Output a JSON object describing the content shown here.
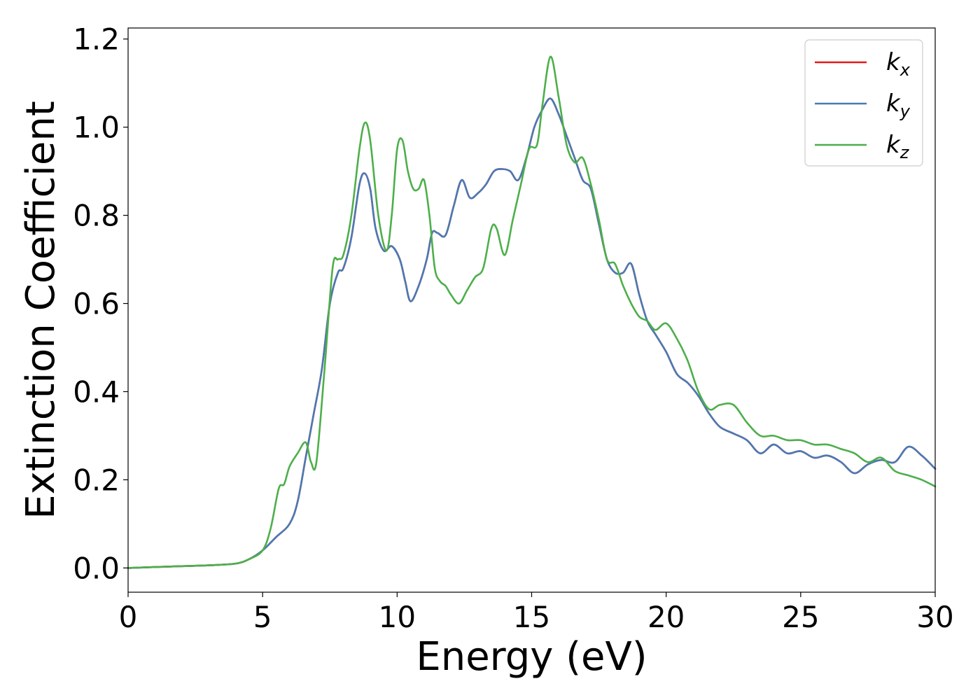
{
  "chart_data": {
    "type": "line",
    "xlabel": "Energy (eV)",
    "ylabel": "Extinction Coefficient",
    "xlim": [
      0,
      30
    ],
    "ylim": [
      -0.055,
      1.225
    ],
    "xticks": [
      0,
      5,
      10,
      15,
      20,
      25,
      30
    ],
    "yticks": [
      0.0,
      0.2,
      0.4,
      0.6,
      0.8,
      1.0,
      1.2
    ],
    "xtick_labels": [
      "0",
      "5",
      "10",
      "15",
      "20",
      "25",
      "30"
    ],
    "ytick_labels": [
      "0.0",
      "0.2",
      "0.4",
      "0.6",
      "0.8",
      "1.0",
      "1.2"
    ],
    "grid": false,
    "legend_position": "top-right",
    "series": [
      {
        "name": "k_x",
        "label_base": "k",
        "label_sub": "x",
        "color": "#e41a1c",
        "hidden_behind": "k_y",
        "x": [
          0,
          1,
          2,
          3,
          4,
          4.5,
          5,
          5.5,
          6,
          6.3,
          6.6,
          6.9,
          7.2,
          7.5,
          7.8,
          8.0,
          8.3,
          8.6,
          8.8,
          9.0,
          9.2,
          9.5,
          9.8,
          10.1,
          10.3,
          10.5,
          10.8,
          11.1,
          11.3,
          11.5,
          11.8,
          12.1,
          12.4,
          12.7,
          13.0,
          13.3,
          13.6,
          13.9,
          14.2,
          14.5,
          14.8,
          15.1,
          15.4,
          15.7,
          16.0,
          16.3,
          16.6,
          16.9,
          17.2,
          17.5,
          17.8,
          18.1,
          18.4,
          18.7,
          19.0,
          19.3,
          19.6,
          20.0,
          20.4,
          20.8,
          21.2,
          21.6,
          22.0,
          22.5,
          23.0,
          23.5,
          24.0,
          24.5,
          25.0,
          25.5,
          26.0,
          26.5,
          27.0,
          27.5,
          28.0,
          28.5,
          29.0,
          29.5,
          30.0
        ],
        "y": [
          0.0,
          0.002,
          0.004,
          0.006,
          0.01,
          0.02,
          0.04,
          0.07,
          0.1,
          0.15,
          0.25,
          0.35,
          0.45,
          0.6,
          0.67,
          0.68,
          0.75,
          0.87,
          0.895,
          0.86,
          0.77,
          0.72,
          0.73,
          0.7,
          0.65,
          0.605,
          0.64,
          0.7,
          0.76,
          0.76,
          0.755,
          0.82,
          0.88,
          0.84,
          0.85,
          0.87,
          0.9,
          0.905,
          0.9,
          0.88,
          0.93,
          1.0,
          1.04,
          1.065,
          1.03,
          0.98,
          0.93,
          0.88,
          0.86,
          0.78,
          0.7,
          0.67,
          0.67,
          0.69,
          0.62,
          0.56,
          0.53,
          0.49,
          0.44,
          0.42,
          0.39,
          0.35,
          0.32,
          0.305,
          0.29,
          0.26,
          0.28,
          0.26,
          0.265,
          0.25,
          0.255,
          0.24,
          0.215,
          0.235,
          0.245,
          0.24,
          0.275,
          0.255,
          0.225
        ]
      },
      {
        "name": "k_y",
        "label_base": "k",
        "label_sub": "y",
        "color": "#4a7ab3",
        "x": [
          0,
          1,
          2,
          3,
          4,
          4.5,
          5,
          5.5,
          6,
          6.3,
          6.6,
          6.9,
          7.2,
          7.5,
          7.8,
          8.0,
          8.3,
          8.6,
          8.8,
          9.0,
          9.2,
          9.5,
          9.8,
          10.1,
          10.3,
          10.5,
          10.8,
          11.1,
          11.3,
          11.5,
          11.8,
          12.1,
          12.4,
          12.7,
          13.0,
          13.3,
          13.6,
          13.9,
          14.2,
          14.5,
          14.8,
          15.1,
          15.4,
          15.7,
          16.0,
          16.3,
          16.6,
          16.9,
          17.2,
          17.5,
          17.8,
          18.1,
          18.4,
          18.7,
          19.0,
          19.3,
          19.6,
          20.0,
          20.4,
          20.8,
          21.2,
          21.6,
          22.0,
          22.5,
          23.0,
          23.5,
          24.0,
          24.5,
          25.0,
          25.5,
          26.0,
          26.5,
          27.0,
          27.5,
          28.0,
          28.5,
          29.0,
          29.5,
          30.0
        ],
        "y": [
          0.0,
          0.002,
          0.004,
          0.006,
          0.01,
          0.02,
          0.04,
          0.07,
          0.1,
          0.15,
          0.25,
          0.35,
          0.45,
          0.6,
          0.67,
          0.68,
          0.75,
          0.87,
          0.895,
          0.86,
          0.77,
          0.72,
          0.73,
          0.7,
          0.65,
          0.605,
          0.64,
          0.7,
          0.76,
          0.76,
          0.755,
          0.82,
          0.88,
          0.84,
          0.85,
          0.87,
          0.9,
          0.905,
          0.9,
          0.88,
          0.93,
          1.0,
          1.04,
          1.065,
          1.03,
          0.98,
          0.93,
          0.88,
          0.86,
          0.78,
          0.7,
          0.67,
          0.67,
          0.69,
          0.62,
          0.56,
          0.53,
          0.49,
          0.44,
          0.42,
          0.39,
          0.35,
          0.32,
          0.305,
          0.29,
          0.26,
          0.28,
          0.26,
          0.265,
          0.25,
          0.255,
          0.24,
          0.215,
          0.235,
          0.245,
          0.24,
          0.275,
          0.255,
          0.225
        ]
      },
      {
        "name": "k_z",
        "label_base": "k",
        "label_sub": "z",
        "color": "#4daf4a",
        "x": [
          0,
          1,
          2,
          3,
          4,
          4.5,
          5,
          5.3,
          5.6,
          5.8,
          6.0,
          6.3,
          6.6,
          6.8,
          7.0,
          7.3,
          7.6,
          7.8,
          8.0,
          8.3,
          8.6,
          8.8,
          9.0,
          9.3,
          9.6,
          9.8,
          10.0,
          10.2,
          10.4,
          10.6,
          10.8,
          11.0,
          11.2,
          11.4,
          11.6,
          11.8,
          12.0,
          12.3,
          12.6,
          12.9,
          13.2,
          13.5,
          13.7,
          14.0,
          14.3,
          14.6,
          14.9,
          15.2,
          15.4,
          15.7,
          16.0,
          16.3,
          16.6,
          16.9,
          17.2,
          17.5,
          17.8,
          18.1,
          18.4,
          18.7,
          19.0,
          19.3,
          19.6,
          20.0,
          20.4,
          20.8,
          21.2,
          21.6,
          22.0,
          22.5,
          23.0,
          23.5,
          24.0,
          24.5,
          25.0,
          25.5,
          26.0,
          26.5,
          27.0,
          27.5,
          28.0,
          28.5,
          29.0,
          29.5,
          30.0
        ],
        "y": [
          0.0,
          0.002,
          0.004,
          0.006,
          0.01,
          0.02,
          0.04,
          0.09,
          0.18,
          0.19,
          0.23,
          0.26,
          0.285,
          0.24,
          0.24,
          0.45,
          0.68,
          0.7,
          0.71,
          0.8,
          0.95,
          1.01,
          0.97,
          0.8,
          0.72,
          0.8,
          0.95,
          0.97,
          0.9,
          0.86,
          0.86,
          0.88,
          0.8,
          0.68,
          0.65,
          0.64,
          0.62,
          0.6,
          0.63,
          0.66,
          0.68,
          0.77,
          0.77,
          0.71,
          0.79,
          0.87,
          0.95,
          0.96,
          1.05,
          1.16,
          1.07,
          0.96,
          0.92,
          0.93,
          0.87,
          0.79,
          0.7,
          0.69,
          0.64,
          0.6,
          0.57,
          0.56,
          0.54,
          0.555,
          0.52,
          0.47,
          0.4,
          0.36,
          0.37,
          0.37,
          0.33,
          0.3,
          0.3,
          0.29,
          0.29,
          0.28,
          0.28,
          0.27,
          0.26,
          0.24,
          0.25,
          0.22,
          0.21,
          0.2,
          0.185
        ]
      }
    ]
  }
}
